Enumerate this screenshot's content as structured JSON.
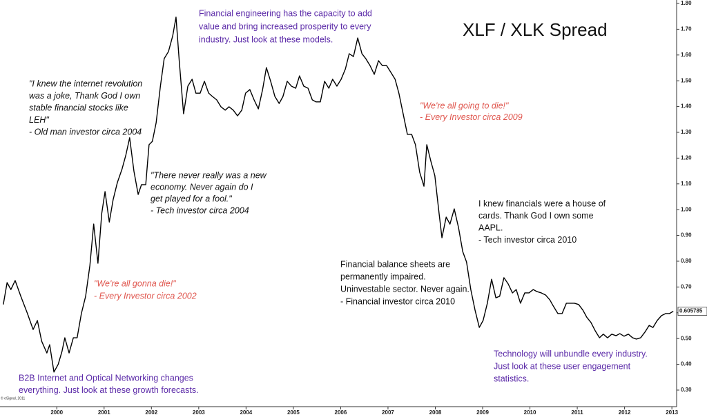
{
  "chart_data": {
    "type": "line",
    "title": "XLF / XLK Spread",
    "source": "© eSignal, 2011",
    "xlim": [
      1998.8,
      2013.1
    ],
    "ylim": [
      0.24,
      1.81
    ],
    "xticks": [
      2000,
      2001,
      2002,
      2003,
      2004,
      2005,
      2006,
      2007,
      2008,
      2009,
      2010,
      2011,
      2012,
      2013
    ],
    "yticks": [
      {
        "value": 0.3,
        "label": "0.30"
      },
      {
        "value": 0.4,
        "label": "0.40"
      },
      {
        "value": 0.5,
        "label": "0.50"
      },
      {
        "value": 0.6,
        "label": "0.60"
      },
      {
        "value": 0.7,
        "label": "0.70"
      },
      {
        "value": 0.8,
        "label": "0.80"
      },
      {
        "value": 0.9,
        "label": "0.90"
      },
      {
        "value": 1.0,
        "label": "1.00"
      },
      {
        "value": 1.1,
        "label": "1.10"
      },
      {
        "value": 1.2,
        "label": "1.20"
      },
      {
        "value": 1.3,
        "label": "1.30"
      },
      {
        "value": 1.4,
        "label": "1.40"
      },
      {
        "value": 1.5,
        "label": "1.50"
      },
      {
        "value": 1.6,
        "label": "1.60"
      },
      {
        "value": 1.7,
        "label": "1.70"
      },
      {
        "value": 1.8,
        "label": "1.80"
      }
    ],
    "color": "#000000",
    "x": [
      1998.87,
      1998.95,
      1999.03,
      1999.12,
      1999.24,
      1999.38,
      1999.5,
      1999.59,
      1999.68,
      1999.79,
      1999.85,
      1999.94,
      2000.03,
      2000.11,
      2000.17,
      2000.26,
      2000.35,
      2000.43,
      2000.52,
      2000.61,
      2000.7,
      2000.78,
      2000.87,
      2000.95,
      2001.02,
      2001.11,
      2001.19,
      2001.28,
      2001.38,
      2001.46,
      2001.54,
      2001.63,
      2001.72,
      2001.79,
      2001.88,
      2001.95,
      2002.02,
      2002.1,
      2002.19,
      2002.27,
      2002.36,
      2002.45,
      2002.52,
      2002.59,
      2002.68,
      2002.77,
      2002.86,
      2002.94,
      2003.03,
      2003.12,
      2003.21,
      2003.29,
      2003.38,
      2003.47,
      2003.56,
      2003.64,
      2003.73,
      2003.82,
      2003.91,
      2003.99,
      2004.08,
      2004.17,
      2004.26,
      2004.35,
      2004.43,
      2004.52,
      2004.61,
      2004.7,
      2004.78,
      2004.87,
      2004.96,
      2005.05,
      2005.13,
      2005.22,
      2005.31,
      2005.4,
      2005.48,
      2005.57,
      2005.66,
      2005.75,
      2005.83,
      2005.92,
      2006.01,
      2006.1,
      2006.18,
      2006.27,
      2006.36,
      2006.45,
      2006.53,
      2006.62,
      2006.71,
      2006.8,
      2006.88,
      2006.97,
      2007.06,
      2007.15,
      2007.23,
      2007.32,
      2007.41,
      2007.5,
      2007.58,
      2007.67,
      2007.76,
      2007.82,
      2007.91,
      2007.99,
      2008.08,
      2008.14,
      2008.23,
      2008.31,
      2008.4,
      2008.49,
      2008.58,
      2008.66,
      2008.75,
      2008.84,
      2008.93,
      2009.01,
      2009.1,
      2009.19,
      2009.28,
      2009.36,
      2009.45,
      2009.54,
      2009.63,
      2009.71,
      2009.8,
      2009.89,
      2009.98,
      2010.07,
      2010.15,
      2010.24,
      2010.33,
      2010.42,
      2010.5,
      2010.59,
      2010.68,
      2010.77,
      2010.85,
      2010.94,
      2011.03,
      2011.12,
      2011.2,
      2011.29,
      2011.38,
      2011.47,
      2011.55,
      2011.64,
      2011.73,
      2011.82,
      2011.9,
      2011.99,
      2012.08,
      2012.17,
      2012.25,
      2012.34,
      2012.43,
      2012.52,
      2012.6,
      2012.69,
      2012.78,
      2012.87,
      2012.95,
      2013.03
    ],
    "values": [
      0.632,
      0.717,
      0.69,
      0.725,
      0.664,
      0.597,
      0.535,
      0.57,
      0.49,
      0.444,
      0.476,
      0.37,
      0.4,
      0.45,
      0.503,
      0.444,
      0.503,
      0.503,
      0.597,
      0.664,
      0.784,
      0.944,
      0.792,
      0.985,
      1.07,
      0.952,
      1.038,
      1.105,
      1.158,
      1.212,
      1.279,
      1.15,
      1.059,
      1.097,
      1.097,
      1.252,
      1.265,
      1.337,
      1.479,
      1.586,
      1.613,
      1.674,
      1.747,
      1.573,
      1.372,
      1.479,
      1.506,
      1.452,
      1.452,
      1.498,
      1.452,
      1.439,
      1.426,
      1.399,
      1.386,
      1.399,
      1.386,
      1.364,
      1.386,
      1.452,
      1.466,
      1.426,
      1.391,
      1.466,
      1.551,
      1.498,
      1.439,
      1.412,
      1.439,
      1.498,
      1.479,
      1.471,
      1.519,
      1.479,
      1.471,
      1.426,
      1.418,
      1.418,
      1.498,
      1.471,
      1.506,
      1.479,
      1.506,
      1.546,
      1.605,
      1.594,
      1.666,
      1.605,
      1.586,
      1.559,
      1.525,
      1.578,
      1.559,
      1.559,
      1.533,
      1.506,
      1.452,
      1.372,
      1.292,
      1.292,
      1.252,
      1.145,
      1.091,
      1.252,
      1.185,
      1.132,
      0.985,
      0.891,
      0.971,
      0.944,
      1.003,
      0.931,
      0.837,
      0.797,
      0.69,
      0.61,
      0.543,
      0.57,
      0.637,
      0.73,
      0.658,
      0.664,
      0.736,
      0.712,
      0.677,
      0.69,
      0.637,
      0.677,
      0.677,
      0.69,
      0.682,
      0.677,
      0.669,
      0.65,
      0.624,
      0.597,
      0.597,
      0.637,
      0.637,
      0.637,
      0.632,
      0.61,
      0.583,
      0.562,
      0.53,
      0.503,
      0.517,
      0.503,
      0.517,
      0.511,
      0.519,
      0.509,
      0.517,
      0.503,
      0.498,
      0.503,
      0.525,
      0.551,
      0.543,
      0.57,
      0.589,
      0.597,
      0.597,
      0.605785
    ],
    "annotations": [
      {
        "color": "#5b2aa8",
        "lines": [
          "Financial engineering has the capacity to add",
          "value and bring increased prosperity to every",
          "industry.  Just look at these models."
        ]
      },
      {
        "color": "#111111",
        "lines": [
          "\"I knew the internet revolution",
          "was a joke, Thank God I own",
          "stable financial stocks like",
          "LEH\"",
          "- Old man investor circa 2004"
        ]
      },
      {
        "color": "#111111",
        "lines": [
          "\"There never really was a new",
          "economy.  Never again do I",
          "get played for a fool.\"",
          "- Tech investor circa 2004"
        ]
      },
      {
        "color": "#e0574f",
        "lines": [
          "\"We're all going to die!\"",
          "- Every Investor circa 2009"
        ]
      },
      {
        "color": "#111111",
        "lines": [
          "I knew financials were a house of",
          "cards.  Thank God I own some",
          "AAPL.",
          "- Tech investor circa 2010"
        ]
      },
      {
        "color": "#111111",
        "lines": [
          "Financial balance sheets are",
          "permanently impaired.",
          "Uninvestable sector.  Never again.",
          "- Financial investor circa 2010"
        ]
      },
      {
        "color": "#e0574f",
        "lines": [
          "\"We're all gonna die!\"",
          "- Every Investor circa 2002"
        ]
      },
      {
        "color": "#5b2aa8",
        "lines": [
          "Technology will unbundle every industry.",
          "Just look at these user engagement",
          "statistics."
        ]
      },
      {
        "color": "#5b2aa8",
        "lines": [
          "B2B Internet and Optical Networking changes",
          "everything.  Just look at these growth forecasts."
        ]
      }
    ]
  }
}
